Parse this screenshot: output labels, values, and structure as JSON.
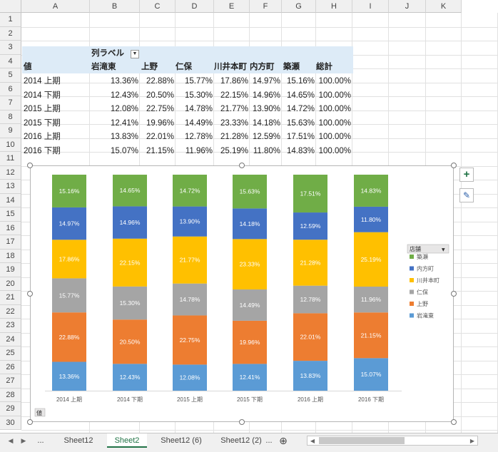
{
  "columns": [
    "A",
    "B",
    "C",
    "D",
    "E",
    "F",
    "G",
    "H",
    "I",
    "J",
    "K"
  ],
  "rows": [
    "1",
    "2",
    "3",
    "4",
    "5",
    "6",
    "7",
    "8",
    "9",
    "10",
    "11",
    "12",
    "13",
    "14",
    "15",
    "16",
    "17",
    "18",
    "19",
    "20",
    "21",
    "22",
    "23",
    "24",
    "25",
    "26",
    "27",
    "28",
    "29",
    "30"
  ],
  "pivot": {
    "col_label": "列ラベル",
    "value_label": "値",
    "headers": [
      "岩滝東",
      "上野",
      "仁保",
      "川井本町",
      "内方町",
      "築瀬",
      "総計"
    ],
    "rows": [
      {
        "label": "2014 上期",
        "values": [
          "13.36%",
          "22.88%",
          "15.77%",
          "17.86%",
          "14.97%",
          "15.16%",
          "100.00%"
        ]
      },
      {
        "label": "2014 下期",
        "values": [
          "12.43%",
          "20.50%",
          "15.30%",
          "22.15%",
          "14.96%",
          "14.65%",
          "100.00%"
        ]
      },
      {
        "label": "2015 上期",
        "values": [
          "12.08%",
          "22.75%",
          "14.78%",
          "21.77%",
          "13.90%",
          "14.72%",
          "100.00%"
        ]
      },
      {
        "label": "2015 下期",
        "values": [
          "12.41%",
          "19.96%",
          "14.49%",
          "23.33%",
          "14.18%",
          "15.63%",
          "100.00%"
        ]
      },
      {
        "label": "2016 上期",
        "values": [
          "13.83%",
          "22.01%",
          "12.78%",
          "21.28%",
          "12.59%",
          "17.51%",
          "100.00%"
        ]
      },
      {
        "label": "2016 下期",
        "values": [
          "15.07%",
          "21.15%",
          "11.96%",
          "25.19%",
          "11.80%",
          "14.83%",
          "100.00%"
        ]
      }
    ]
  },
  "chart_data": {
    "type": "bar",
    "stacked": true,
    "categories": [
      "2014 上期",
      "2014 下期",
      "2015 上期",
      "2015 下期",
      "2016 上期",
      "2016 下期"
    ],
    "series": [
      {
        "name": "岩滝東",
        "color": "#5b9bd5",
        "values": [
          13.36,
          12.43,
          12.08,
          12.41,
          13.83,
          15.07
        ]
      },
      {
        "name": "上野",
        "color": "#ed7d31",
        "values": [
          22.88,
          20.5,
          22.75,
          19.96,
          22.01,
          21.15
        ]
      },
      {
        "name": "仁保",
        "color": "#a5a5a5",
        "values": [
          15.77,
          15.3,
          14.78,
          14.49,
          12.78,
          11.96
        ]
      },
      {
        "name": "川井本町",
        "color": "#ffc000",
        "values": [
          17.86,
          22.15,
          21.77,
          23.33,
          21.28,
          25.19
        ]
      },
      {
        "name": "内方町",
        "color": "#4472c4",
        "values": [
          14.97,
          14.96,
          13.9,
          14.18,
          12.59,
          11.8
        ]
      },
      {
        "name": "築瀬",
        "color": "#70ad47",
        "values": [
          15.16,
          14.65,
          14.72,
          15.63,
          17.51,
          14.83
        ]
      }
    ],
    "ylim": [
      0,
      100
    ],
    "legend_title": "店舗",
    "legend_position": "right",
    "field_button": "値",
    "data_labels": true
  },
  "chart_tools": {
    "add_icon": "plus-icon",
    "style_icon": "brush-icon"
  },
  "tabs": {
    "ellipsis_left": "...",
    "items": [
      {
        "label": "Sheet12",
        "active": false
      },
      {
        "label": "Sheet2",
        "active": true
      },
      {
        "label": "Sheet12 (6)",
        "active": false
      },
      {
        "label": "Sheet12 (2)",
        "active": false
      }
    ],
    "ellipsis_right": "...",
    "add_icon": "⊕"
  }
}
